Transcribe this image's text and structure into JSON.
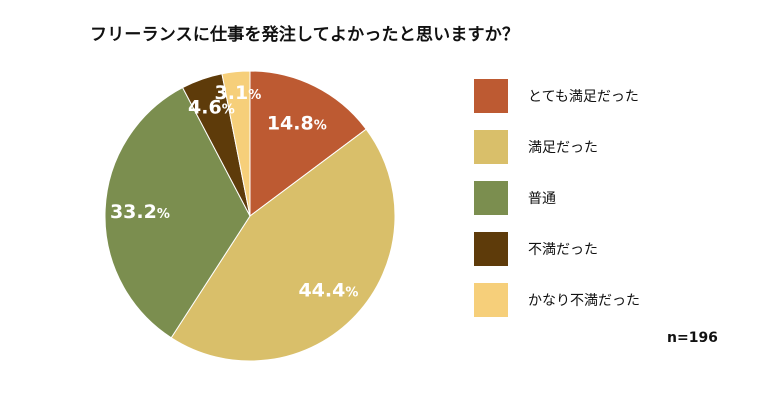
{
  "title": "フリーランスに仕事を発注してよかったと思いますか？",
  "sample_size": "n=196",
  "chart_data": {
    "type": "pie",
    "title": "フリーランスに仕事を発注してよかったと思いますか？",
    "start_angle_deg": 0,
    "direction": "clockwise",
    "legend_position": "right",
    "slices": [
      {
        "label": "とても満足だった",
        "value": 14.8,
        "display": "14.8%",
        "color": "#bd5a32"
      },
      {
        "label": "満足だった",
        "value": 44.4,
        "display": "44.4%",
        "color": "#d9bf6a"
      },
      {
        "label": "普通",
        "value": 33.2,
        "display": "33.2%",
        "color": "#7b8e4f"
      },
      {
        "label": "不満だった",
        "value": 4.6,
        "display": "4.6%",
        "color": "#5e3b0a"
      },
      {
        "label": "かなり不満だった",
        "value": 3.1,
        "display": "3.1%",
        "color": "#f6cf7a"
      }
    ]
  }
}
